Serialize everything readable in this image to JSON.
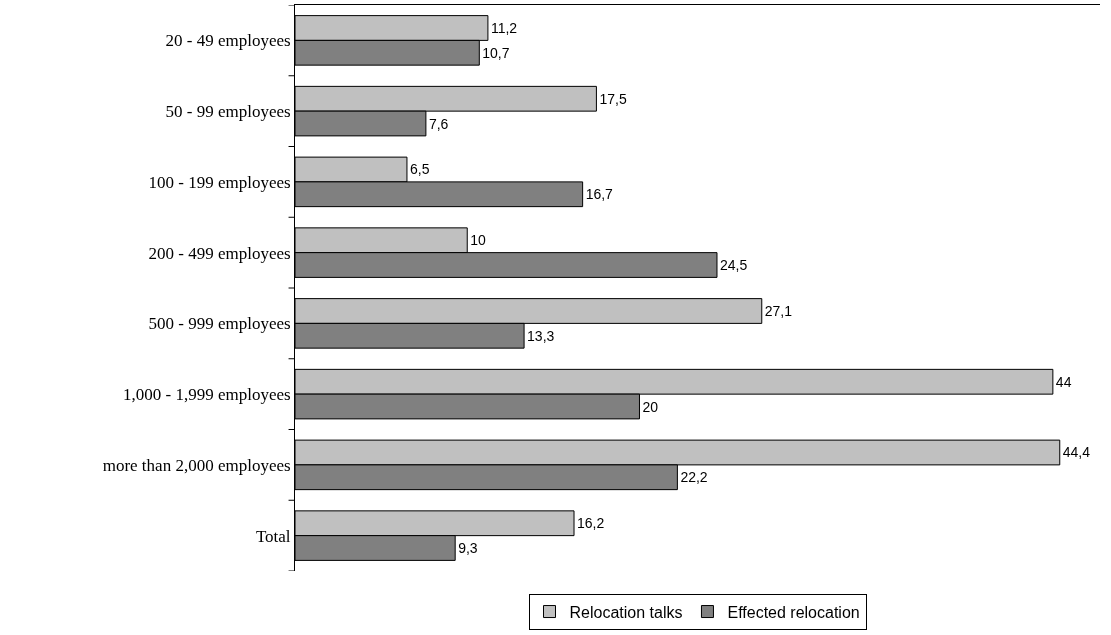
{
  "chart_data": {
    "type": "bar",
    "orientation": "horizontal",
    "categories": [
      "20 - 49 employees",
      "50 - 99 employees",
      "100 - 199 employees",
      "200 - 499 employees",
      "500 - 999 employees",
      "1,000 - 1,999 employees",
      "more than 2,000 employees",
      "Total"
    ],
    "series": [
      {
        "name": "Relocation talks",
        "color": "#c0c0c0",
        "values": [
          11.2,
          17.5,
          6.5,
          10,
          27.1,
          44,
          44.4,
          16.2
        ],
        "value_labels": [
          "11,2",
          "17,5",
          "6,5",
          "10",
          "27,1",
          "44",
          "44,4",
          "16,2"
        ]
      },
      {
        "name": "Effected relocation",
        "color": "#808080",
        "values": [
          10.7,
          7.6,
          16.7,
          24.5,
          13.3,
          20,
          22.2,
          9.3
        ],
        "value_labels": [
          "10,7",
          "7,6",
          "16,7",
          "24,5",
          "13,3",
          "20",
          "22,2",
          "9,3"
        ]
      }
    ],
    "legend": "bottom",
    "grid": false
  }
}
